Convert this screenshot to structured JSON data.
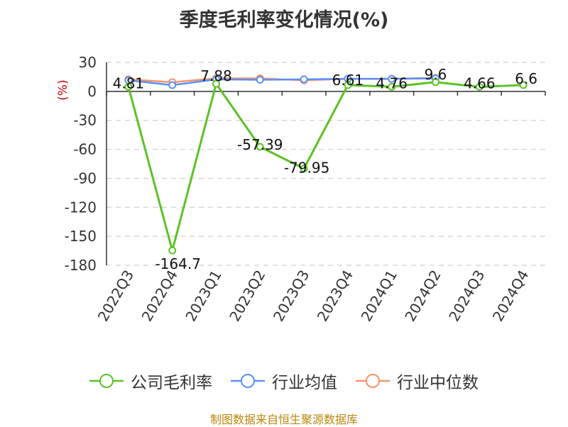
{
  "title": "季度毛利率变化情况(%)",
  "source": "制图数据来自恒生聚源数据库",
  "chart_data": {
    "type": "line",
    "ylabel": "(%)",
    "ylim": [
      -180,
      30
    ],
    "yticks": [
      30,
      0,
      -30,
      -60,
      -90,
      -120,
      -150,
      -180
    ],
    "grid": true,
    "legend_position": "bottom",
    "categories": [
      "2022Q3",
      "2022Q4",
      "2023Q1",
      "2023Q2",
      "2023Q3",
      "2023Q4",
      "2024Q1",
      "2024Q2",
      "2024Q3",
      "2024Q4"
    ],
    "series": [
      {
        "name": "公司毛利率",
        "color": "#5cc224",
        "values": [
          4.81,
          -164.7,
          7.88,
          -57.39,
          -79.95,
          6.61,
          4.76,
          9.6,
          4.66,
          6.6
        ],
        "labels": [
          "4.81",
          "-164.7",
          "7.88",
          "-57.39",
          "-79.95",
          "6.61",
          "4.76",
          "9.6",
          "4.66",
          "6.6"
        ]
      },
      {
        "name": "行业均值",
        "color": "#5b8ff9",
        "values": [
          11.5,
          6.5,
          12.5,
          12.0,
          12.5,
          13.0,
          13.0,
          13.5,
          null,
          null
        ]
      },
      {
        "name": "行业中位数",
        "color": "#f7936a",
        "values": [
          12.5,
          9.5,
          13.5,
          13.5,
          11.5,
          13.0,
          13.0,
          14.0,
          null,
          null
        ]
      }
    ]
  }
}
